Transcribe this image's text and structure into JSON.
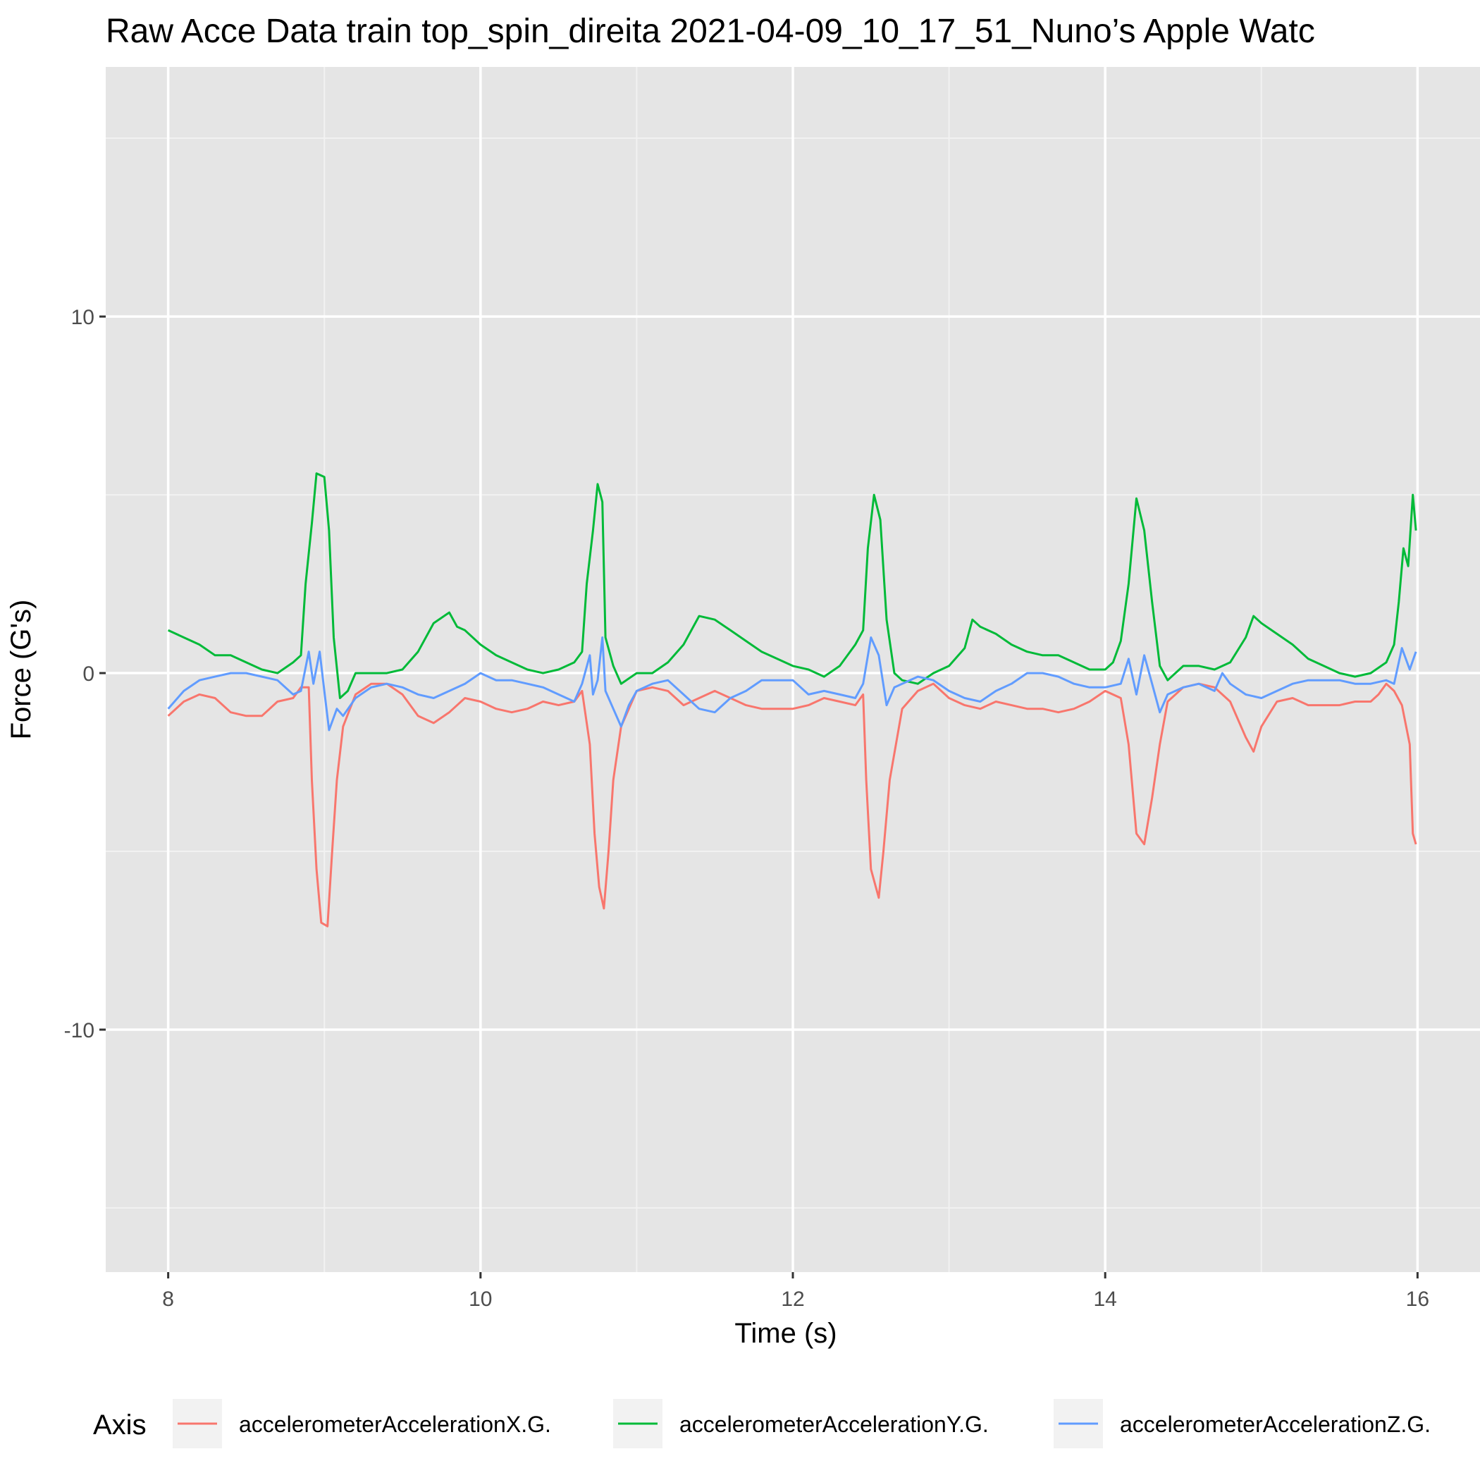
{
  "chart_data": {
    "type": "line",
    "title": "Raw Acce Data train top_spin_direita 2021-04-09_10_17_51_Nuno’s Apple Watc",
    "xlabel": "Time (s)",
    "ylabel": "Force (G's)",
    "xlim": [
      7.6,
      16.4
    ],
    "ylim": [
      -16.8,
      17.0
    ],
    "x_ticks": [
      8,
      10,
      12,
      14,
      16
    ],
    "x_tick_labels": [
      "8",
      "10",
      "12",
      "14",
      "16"
    ],
    "y_ticks": [
      -10,
      0,
      10
    ],
    "y_tick_labels": [
      "-10",
      "0",
      "10"
    ],
    "grid": true,
    "background": "#e5e5e5",
    "legend": {
      "title": "Axis",
      "position": "bottom"
    },
    "series": [
      {
        "name": "accelerometerAccelerationX.G.",
        "color": "#f8766d",
        "points": [
          [
            8.0,
            -1.2
          ],
          [
            8.1,
            -0.8
          ],
          [
            8.2,
            -0.6
          ],
          [
            8.3,
            -0.7
          ],
          [
            8.4,
            -1.1
          ],
          [
            8.5,
            -1.2
          ],
          [
            8.6,
            -1.2
          ],
          [
            8.7,
            -0.8
          ],
          [
            8.8,
            -0.7
          ],
          [
            8.85,
            -0.4
          ],
          [
            8.9,
            -0.4
          ],
          [
            8.92,
            -3.0
          ],
          [
            8.95,
            -5.5
          ],
          [
            8.98,
            -7.0
          ],
          [
            9.02,
            -7.1
          ],
          [
            9.05,
            -5.0
          ],
          [
            9.08,
            -3.0
          ],
          [
            9.12,
            -1.5
          ],
          [
            9.2,
            -0.6
          ],
          [
            9.3,
            -0.3
          ],
          [
            9.4,
            -0.3
          ],
          [
            9.5,
            -0.6
          ],
          [
            9.6,
            -1.2
          ],
          [
            9.7,
            -1.4
          ],
          [
            9.8,
            -1.1
          ],
          [
            9.9,
            -0.7
          ],
          [
            10.0,
            -0.8
          ],
          [
            10.1,
            -1.0
          ],
          [
            10.2,
            -1.1
          ],
          [
            10.3,
            -1.0
          ],
          [
            10.4,
            -0.8
          ],
          [
            10.5,
            -0.9
          ],
          [
            10.6,
            -0.8
          ],
          [
            10.65,
            -0.5
          ],
          [
            10.7,
            -2.0
          ],
          [
            10.73,
            -4.5
          ],
          [
            10.76,
            -6.0
          ],
          [
            10.79,
            -6.6
          ],
          [
            10.82,
            -5.0
          ],
          [
            10.85,
            -3.0
          ],
          [
            10.9,
            -1.5
          ],
          [
            11.0,
            -0.5
          ],
          [
            11.1,
            -0.4
          ],
          [
            11.2,
            -0.5
          ],
          [
            11.3,
            -0.9
          ],
          [
            11.4,
            -0.7
          ],
          [
            11.5,
            -0.5
          ],
          [
            11.6,
            -0.7
          ],
          [
            11.7,
            -0.9
          ],
          [
            11.8,
            -1.0
          ],
          [
            11.9,
            -1.0
          ],
          [
            12.0,
            -1.0
          ],
          [
            12.1,
            -0.9
          ],
          [
            12.2,
            -0.7
          ],
          [
            12.3,
            -0.8
          ],
          [
            12.4,
            -0.9
          ],
          [
            12.45,
            -0.6
          ],
          [
            12.47,
            -3.0
          ],
          [
            12.5,
            -5.5
          ],
          [
            12.55,
            -6.3
          ],
          [
            12.58,
            -5.0
          ],
          [
            12.62,
            -3.0
          ],
          [
            12.7,
            -1.0
          ],
          [
            12.8,
            -0.5
          ],
          [
            12.9,
            -0.3
          ],
          [
            13.0,
            -0.7
          ],
          [
            13.1,
            -0.9
          ],
          [
            13.2,
            -1.0
          ],
          [
            13.3,
            -0.8
          ],
          [
            13.4,
            -0.9
          ],
          [
            13.5,
            -1.0
          ],
          [
            13.6,
            -1.0
          ],
          [
            13.7,
            -1.1
          ],
          [
            13.8,
            -1.0
          ],
          [
            13.9,
            -0.8
          ],
          [
            14.0,
            -0.5
          ],
          [
            14.1,
            -0.7
          ],
          [
            14.15,
            -2.0
          ],
          [
            14.2,
            -4.5
          ],
          [
            14.25,
            -4.8
          ],
          [
            14.3,
            -3.5
          ],
          [
            14.35,
            -2.0
          ],
          [
            14.4,
            -0.8
          ],
          [
            14.5,
            -0.4
          ],
          [
            14.6,
            -0.3
          ],
          [
            14.7,
            -0.4
          ],
          [
            14.8,
            -0.8
          ],
          [
            14.9,
            -1.8
          ],
          [
            14.95,
            -2.2
          ],
          [
            15.0,
            -1.5
          ],
          [
            15.1,
            -0.8
          ],
          [
            15.2,
            -0.7
          ],
          [
            15.3,
            -0.9
          ],
          [
            15.4,
            -0.9
          ],
          [
            15.5,
            -0.9
          ],
          [
            15.6,
            -0.8
          ],
          [
            15.7,
            -0.8
          ],
          [
            15.75,
            -0.6
          ],
          [
            15.8,
            -0.3
          ],
          [
            15.85,
            -0.5
          ],
          [
            15.9,
            -0.9
          ],
          [
            15.95,
            -2.0
          ],
          [
            15.97,
            -4.5
          ],
          [
            15.99,
            -4.8
          ]
        ]
      },
      {
        "name": "accelerometerAccelerationY.G.",
        "color": "#00ba38",
        "points": [
          [
            8.0,
            1.2
          ],
          [
            8.1,
            1.0
          ],
          [
            8.2,
            0.8
          ],
          [
            8.3,
            0.5
          ],
          [
            8.4,
            0.5
          ],
          [
            8.5,
            0.3
          ],
          [
            8.6,
            0.1
          ],
          [
            8.7,
            0.0
          ],
          [
            8.8,
            0.3
          ],
          [
            8.85,
            0.5
          ],
          [
            8.88,
            2.5
          ],
          [
            8.92,
            4.2
          ],
          [
            8.95,
            5.6
          ],
          [
            9.0,
            5.5
          ],
          [
            9.03,
            4.0
          ],
          [
            9.06,
            1.0
          ],
          [
            9.1,
            -0.7
          ],
          [
            9.15,
            -0.5
          ],
          [
            9.2,
            0.0
          ],
          [
            9.3,
            0.0
          ],
          [
            9.4,
            0.0
          ],
          [
            9.5,
            0.1
          ],
          [
            9.6,
            0.6
          ],
          [
            9.7,
            1.4
          ],
          [
            9.8,
            1.7
          ],
          [
            9.85,
            1.3
          ],
          [
            9.9,
            1.2
          ],
          [
            10.0,
            0.8
          ],
          [
            10.1,
            0.5
          ],
          [
            10.2,
            0.3
          ],
          [
            10.3,
            0.1
          ],
          [
            10.4,
            0.0
          ],
          [
            10.5,
            0.1
          ],
          [
            10.6,
            0.3
          ],
          [
            10.65,
            0.6
          ],
          [
            10.68,
            2.5
          ],
          [
            10.72,
            4.0
          ],
          [
            10.75,
            5.3
          ],
          [
            10.78,
            4.8
          ],
          [
            10.8,
            1.0
          ],
          [
            10.85,
            0.2
          ],
          [
            10.9,
            -0.3
          ],
          [
            11.0,
            0.0
          ],
          [
            11.1,
            0.0
          ],
          [
            11.2,
            0.3
          ],
          [
            11.3,
            0.8
          ],
          [
            11.4,
            1.6
          ],
          [
            11.5,
            1.5
          ],
          [
            11.6,
            1.2
          ],
          [
            11.7,
            0.9
          ],
          [
            11.8,
            0.6
          ],
          [
            11.9,
            0.4
          ],
          [
            12.0,
            0.2
          ],
          [
            12.1,
            0.1
          ],
          [
            12.2,
            -0.1
          ],
          [
            12.3,
            0.2
          ],
          [
            12.4,
            0.8
          ],
          [
            12.45,
            1.2
          ],
          [
            12.48,
            3.5
          ],
          [
            12.52,
            5.0
          ],
          [
            12.56,
            4.3
          ],
          [
            12.6,
            1.5
          ],
          [
            12.65,
            0.0
          ],
          [
            12.7,
            -0.2
          ],
          [
            12.8,
            -0.3
          ],
          [
            12.9,
            0.0
          ],
          [
            13.0,
            0.2
          ],
          [
            13.1,
            0.7
          ],
          [
            13.15,
            1.5
          ],
          [
            13.2,
            1.3
          ],
          [
            13.3,
            1.1
          ],
          [
            13.4,
            0.8
          ],
          [
            13.5,
            0.6
          ],
          [
            13.6,
            0.5
          ],
          [
            13.7,
            0.5
          ],
          [
            13.8,
            0.3
          ],
          [
            13.9,
            0.1
          ],
          [
            14.0,
            0.1
          ],
          [
            14.05,
            0.3
          ],
          [
            14.1,
            0.9
          ],
          [
            14.15,
            2.5
          ],
          [
            14.2,
            4.9
          ],
          [
            14.25,
            4.0
          ],
          [
            14.3,
            2.0
          ],
          [
            14.35,
            0.2
          ],
          [
            14.4,
            -0.2
          ],
          [
            14.5,
            0.2
          ],
          [
            14.6,
            0.2
          ],
          [
            14.7,
            0.1
          ],
          [
            14.8,
            0.3
          ],
          [
            14.9,
            1.0
          ],
          [
            14.95,
            1.6
          ],
          [
            15.0,
            1.4
          ],
          [
            15.1,
            1.1
          ],
          [
            15.2,
            0.8
          ],
          [
            15.3,
            0.4
          ],
          [
            15.4,
            0.2
          ],
          [
            15.5,
            0.0
          ],
          [
            15.6,
            -0.1
          ],
          [
            15.7,
            0.0
          ],
          [
            15.8,
            0.3
          ],
          [
            15.85,
            0.8
          ],
          [
            15.88,
            2.0
          ],
          [
            15.91,
            3.5
          ],
          [
            15.94,
            3.0
          ],
          [
            15.97,
            5.0
          ],
          [
            15.99,
            4.0
          ]
        ]
      },
      {
        "name": "accelerometerAccelerationZ.G.",
        "color": "#619cff",
        "points": [
          [
            8.0,
            -1.0
          ],
          [
            8.1,
            -0.5
          ],
          [
            8.2,
            -0.2
          ],
          [
            8.3,
            -0.1
          ],
          [
            8.4,
            0.0
          ],
          [
            8.5,
            0.0
          ],
          [
            8.6,
            -0.1
          ],
          [
            8.7,
            -0.2
          ],
          [
            8.8,
            -0.6
          ],
          [
            8.85,
            -0.5
          ],
          [
            8.9,
            0.6
          ],
          [
            8.93,
            -0.3
          ],
          [
            8.97,
            0.6
          ],
          [
            9.0,
            -0.5
          ],
          [
            9.03,
            -1.6
          ],
          [
            9.08,
            -1.0
          ],
          [
            9.12,
            -1.2
          ],
          [
            9.2,
            -0.7
          ],
          [
            9.3,
            -0.4
          ],
          [
            9.4,
            -0.3
          ],
          [
            9.5,
            -0.4
          ],
          [
            9.6,
            -0.6
          ],
          [
            9.7,
            -0.7
          ],
          [
            9.8,
            -0.5
          ],
          [
            9.9,
            -0.3
          ],
          [
            10.0,
            0.0
          ],
          [
            10.1,
            -0.2
          ],
          [
            10.2,
            -0.2
          ],
          [
            10.3,
            -0.3
          ],
          [
            10.4,
            -0.4
          ],
          [
            10.5,
            -0.6
          ],
          [
            10.6,
            -0.8
          ],
          [
            10.65,
            -0.3
          ],
          [
            10.7,
            0.5
          ],
          [
            10.72,
            -0.6
          ],
          [
            10.75,
            -0.2
          ],
          [
            10.78,
            1.0
          ],
          [
            10.8,
            -0.5
          ],
          [
            10.85,
            -1.0
          ],
          [
            10.9,
            -1.5
          ],
          [
            10.95,
            -0.9
          ],
          [
            11.0,
            -0.5
          ],
          [
            11.1,
            -0.3
          ],
          [
            11.2,
            -0.2
          ],
          [
            11.3,
            -0.6
          ],
          [
            11.4,
            -1.0
          ],
          [
            11.5,
            -1.1
          ],
          [
            11.6,
            -0.7
          ],
          [
            11.7,
            -0.5
          ],
          [
            11.8,
            -0.2
          ],
          [
            11.9,
            -0.2
          ],
          [
            12.0,
            -0.2
          ],
          [
            12.1,
            -0.6
          ],
          [
            12.2,
            -0.5
          ],
          [
            12.3,
            -0.6
          ],
          [
            12.4,
            -0.7
          ],
          [
            12.45,
            -0.3
          ],
          [
            12.5,
            1.0
          ],
          [
            12.55,
            0.5
          ],
          [
            12.6,
            -0.9
          ],
          [
            12.65,
            -0.4
          ],
          [
            12.7,
            -0.3
          ],
          [
            12.8,
            -0.1
          ],
          [
            12.9,
            -0.2
          ],
          [
            13.0,
            -0.5
          ],
          [
            13.1,
            -0.7
          ],
          [
            13.2,
            -0.8
          ],
          [
            13.3,
            -0.5
          ],
          [
            13.4,
            -0.3
          ],
          [
            13.5,
            0.0
          ],
          [
            13.6,
            0.0
          ],
          [
            13.7,
            -0.1
          ],
          [
            13.8,
            -0.3
          ],
          [
            13.9,
            -0.4
          ],
          [
            14.0,
            -0.4
          ],
          [
            14.1,
            -0.3
          ],
          [
            14.15,
            0.4
          ],
          [
            14.2,
            -0.6
          ],
          [
            14.25,
            0.5
          ],
          [
            14.3,
            -0.3
          ],
          [
            14.35,
            -1.1
          ],
          [
            14.4,
            -0.6
          ],
          [
            14.5,
            -0.4
          ],
          [
            14.6,
            -0.3
          ],
          [
            14.7,
            -0.5
          ],
          [
            14.75,
            0.0
          ],
          [
            14.8,
            -0.3
          ],
          [
            14.9,
            -0.6
          ],
          [
            15.0,
            -0.7
          ],
          [
            15.1,
            -0.5
          ],
          [
            15.2,
            -0.3
          ],
          [
            15.3,
            -0.2
          ],
          [
            15.4,
            -0.2
          ],
          [
            15.5,
            -0.2
          ],
          [
            15.6,
            -0.3
          ],
          [
            15.7,
            -0.3
          ],
          [
            15.8,
            -0.2
          ],
          [
            15.85,
            -0.3
          ],
          [
            15.9,
            0.7
          ],
          [
            15.95,
            0.1
          ],
          [
            15.99,
            0.6
          ]
        ]
      }
    ]
  }
}
